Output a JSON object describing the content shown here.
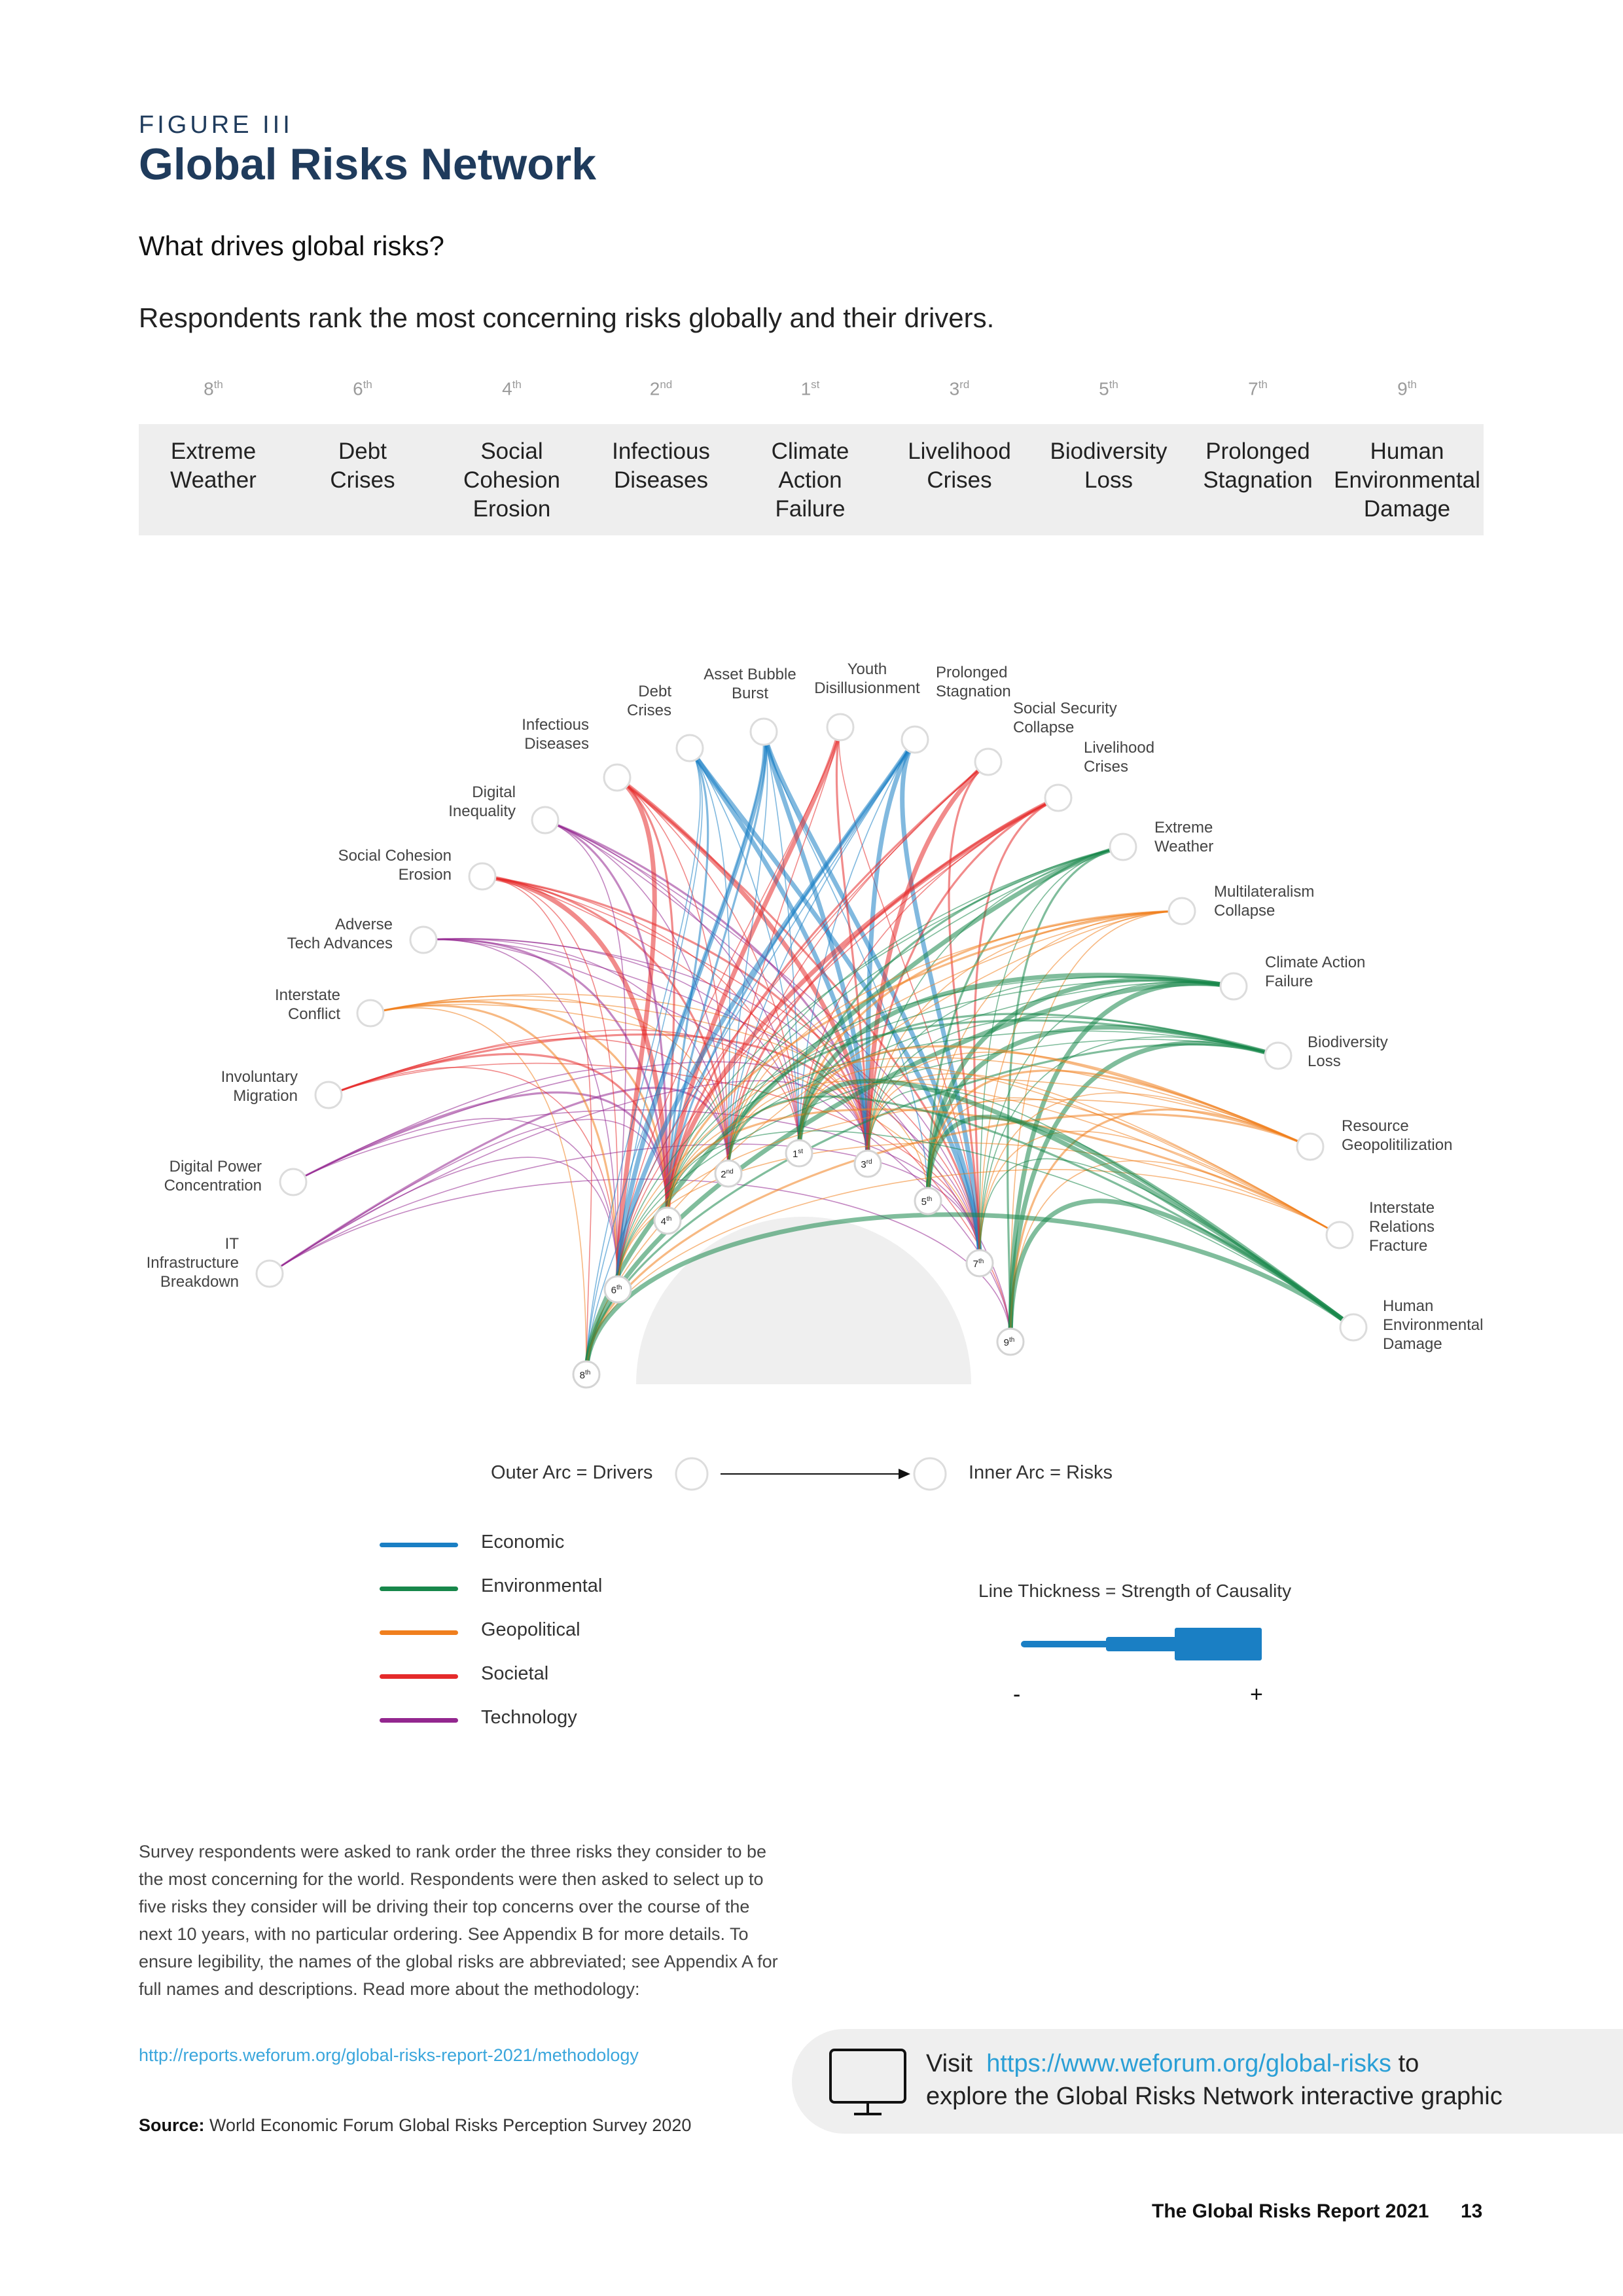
{
  "figure": {
    "label": "FIGURE III",
    "title": "Global Risks Network",
    "subtitle": "What drives global risks?",
    "intro": "Respondents rank the most concerning risks globally and their drivers."
  },
  "risk_table": [
    {
      "rank": "8",
      "suffix": "th",
      "lines": [
        "Extreme",
        "Weather"
      ]
    },
    {
      "rank": "6",
      "suffix": "th",
      "lines": [
        "Debt",
        "Crises"
      ]
    },
    {
      "rank": "4",
      "suffix": "th",
      "lines": [
        "Social",
        "Cohesion",
        "Erosion"
      ]
    },
    {
      "rank": "2",
      "suffix": "nd",
      "lines": [
        "Infectious",
        "Diseases"
      ]
    },
    {
      "rank": "1",
      "suffix": "st",
      "lines": [
        "Climate",
        "Action",
        "Failure"
      ]
    },
    {
      "rank": "3",
      "suffix": "rd",
      "lines": [
        "Livelihood",
        "Crises"
      ]
    },
    {
      "rank": "5",
      "suffix": "th",
      "lines": [
        "Biodiversity",
        "Loss"
      ]
    },
    {
      "rank": "7",
      "suffix": "th",
      "lines": [
        "Prolonged",
        "Stagnation"
      ]
    },
    {
      "rank": "9",
      "suffix": "th",
      "lines": [
        "Human",
        "Environmental",
        "Damage"
      ]
    }
  ],
  "categories": [
    {
      "name": "Economic",
      "color": "#1a7fc4"
    },
    {
      "name": "Environmental",
      "color": "#17874a"
    },
    {
      "name": "Geopolitical",
      "color": "#f07f1e"
    },
    {
      "name": "Societal",
      "color": "#e52b2b"
    },
    {
      "name": "Technology",
      "color": "#93278f"
    }
  ],
  "drivers": [
    {
      "lines": [
        "IT",
        "Infrastructure",
        "Breakdown"
      ],
      "category": "Technology"
    },
    {
      "lines": [
        "Digital Power",
        "Concentration"
      ],
      "category": "Technology"
    },
    {
      "lines": [
        "Involuntary",
        "Migration"
      ],
      "category": "Societal"
    },
    {
      "lines": [
        "Interstate",
        "Conflict"
      ],
      "category": "Geopolitical"
    },
    {
      "lines": [
        "Adverse",
        "Tech Advances"
      ],
      "category": "Technology"
    },
    {
      "lines": [
        "Social Cohesion",
        "Erosion"
      ],
      "category": "Societal"
    },
    {
      "lines": [
        "Digital",
        "Inequality"
      ],
      "category": "Technology"
    },
    {
      "lines": [
        "Infectious",
        "Diseases"
      ],
      "category": "Societal"
    },
    {
      "lines": [
        "Debt",
        "Crises"
      ],
      "category": "Economic"
    },
    {
      "lines": [
        "Asset Bubble",
        "Burst"
      ],
      "category": "Economic"
    },
    {
      "lines": [
        "Youth",
        "Disillusionment"
      ],
      "category": "Societal"
    },
    {
      "lines": [
        "Prolonged",
        "Stagnation"
      ],
      "category": "Economic"
    },
    {
      "lines": [
        "Social Security",
        "Collapse"
      ],
      "category": "Societal"
    },
    {
      "lines": [
        "Livelihood",
        "Crises"
      ],
      "category": "Societal"
    },
    {
      "lines": [
        "Extreme",
        "Weather"
      ],
      "category": "Environmental"
    },
    {
      "lines": [
        "Multilateralism",
        "Collapse"
      ],
      "category": "Geopolitical"
    },
    {
      "lines": [
        "Climate Action",
        "Failure"
      ],
      "category": "Environmental"
    },
    {
      "lines": [
        "Biodiversity",
        "Loss"
      ],
      "category": "Environmental"
    },
    {
      "lines": [
        "Resource",
        "Geopolitilization"
      ],
      "category": "Geopolitical"
    },
    {
      "lines": [
        "Interstate",
        "Relations",
        "Fracture"
      ],
      "category": "Geopolitical"
    },
    {
      "lines": [
        "Human",
        "Environmental",
        "Damage"
      ],
      "category": "Environmental"
    }
  ],
  "inner_ranks": [
    {
      "rank": "8",
      "suffix": "th"
    },
    {
      "rank": "6",
      "suffix": "th"
    },
    {
      "rank": "4",
      "suffix": "th"
    },
    {
      "rank": "2",
      "suffix": "nd"
    },
    {
      "rank": "1",
      "suffix": "st"
    },
    {
      "rank": "3",
      "suffix": "rd"
    },
    {
      "rank": "5",
      "suffix": "th"
    },
    {
      "rank": "7",
      "suffix": "th"
    },
    {
      "rank": "9",
      "suffix": "th"
    }
  ],
  "legend": {
    "outer_arc": "Outer Arc = Drivers",
    "inner_arc": "Inner Arc = Risks",
    "thickness": "Line Thickness = Strength of Causality",
    "minus": "-",
    "plus": "+",
    "thickness_color": "#1a7fc4"
  },
  "notes": {
    "description": "Survey respondents were asked to rank order the three risks they consider to be the most concerning for the world. Respondents were then asked to select up to five risks they consider will be driving their top concerns over the course of the next 10 years, with no particular ordering. See Appendix B for more details. To ensure legibility, the names of the global risks are abbreviated; see Appendix A for full names and descriptions. Read more about the methodology:",
    "method_link": "http://reports.weforum.org/global-risks-report-2021/methodology",
    "source_label": "Source:",
    "source_text": "World Economic Forum Global Risks Perception Survey 2020"
  },
  "visit": {
    "prefix": "Visit",
    "link": "https://www.weforum.org/global-risks",
    "suffix": "to",
    "line2": "explore the Global Risks Network interactive graphic",
    "icon": "monitor-icon"
  },
  "footer": {
    "title": "The Global Risks Report 2021",
    "page": "13"
  }
}
